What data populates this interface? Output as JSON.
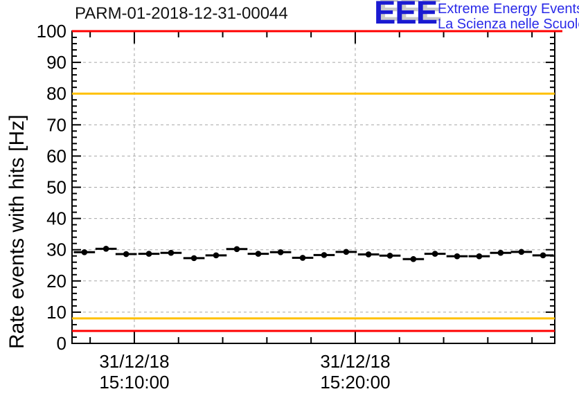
{
  "header": {
    "title": "PARM-01-2018-12-31-00044",
    "logo": {
      "acronym": "EEE",
      "line1": "Extreme Energy Events",
      "line2": "La Scienza nelle Scuole",
      "acronym_color": "#1a1ad2",
      "text_color": "#2a2ae8",
      "shadow_color": "#c9c9c9"
    }
  },
  "chart_data": {
    "type": "scatter",
    "title": "PARM-01-2018-12-31-00044",
    "xlabel": "",
    "ylabel": "Rate events with hits [Hz]",
    "ylim": [
      0,
      100
    ],
    "y_major_step": 10,
    "y_minor_step": 2,
    "grid": true,
    "legend_position": "none",
    "x_domain_minutes": [
      0,
      21.85
    ],
    "x_minor_start_min": 0.82,
    "x_minor_step_min": 2,
    "x_major_ticks": [
      {
        "pos_min": 2.82,
        "label_line1": "31/12/18",
        "label_line2": "15:10:00"
      },
      {
        "pos_min": 12.82,
        "label_line1": "31/12/18",
        "label_line2": "15:20:00"
      }
    ],
    "thresholds": [
      {
        "name": "upper-alarm",
        "value": 100,
        "color": "#ff0000"
      },
      {
        "name": "upper-warning",
        "value": 80,
        "color": "#ffc000"
      },
      {
        "name": "lower-warning",
        "value": 8,
        "color": "#ffc000"
      },
      {
        "name": "lower-alarm",
        "value": 4,
        "color": "#ff0000"
      }
    ],
    "series": [
      {
        "name": "rate-events-with-hits",
        "marker": "filled-circle",
        "color": "#000000",
        "x_error_minutes": 0.48,
        "x_minutes": [
          0.56,
          1.54,
          2.45,
          3.48,
          4.48,
          5.52,
          6.52,
          7.46,
          8.43,
          9.44,
          10.44,
          11.41,
          12.41,
          13.42,
          14.39,
          15.45,
          16.43,
          17.43,
          18.43,
          19.4,
          20.34,
          21.32
        ],
        "values": [
          29.2,
          30.3,
          28.6,
          28.7,
          29.0,
          27.3,
          28.2,
          30.2,
          28.7,
          29.2,
          27.4,
          28.3,
          29.3,
          28.5,
          28.1,
          27.0,
          28.7,
          27.9,
          27.9,
          29.0,
          29.3,
          28.2
        ]
      }
    ],
    "style": {
      "grid_color": "#a6a6a6",
      "axis_color": "#000000",
      "tick_label_size": 26,
      "background": "#ffffff"
    }
  }
}
